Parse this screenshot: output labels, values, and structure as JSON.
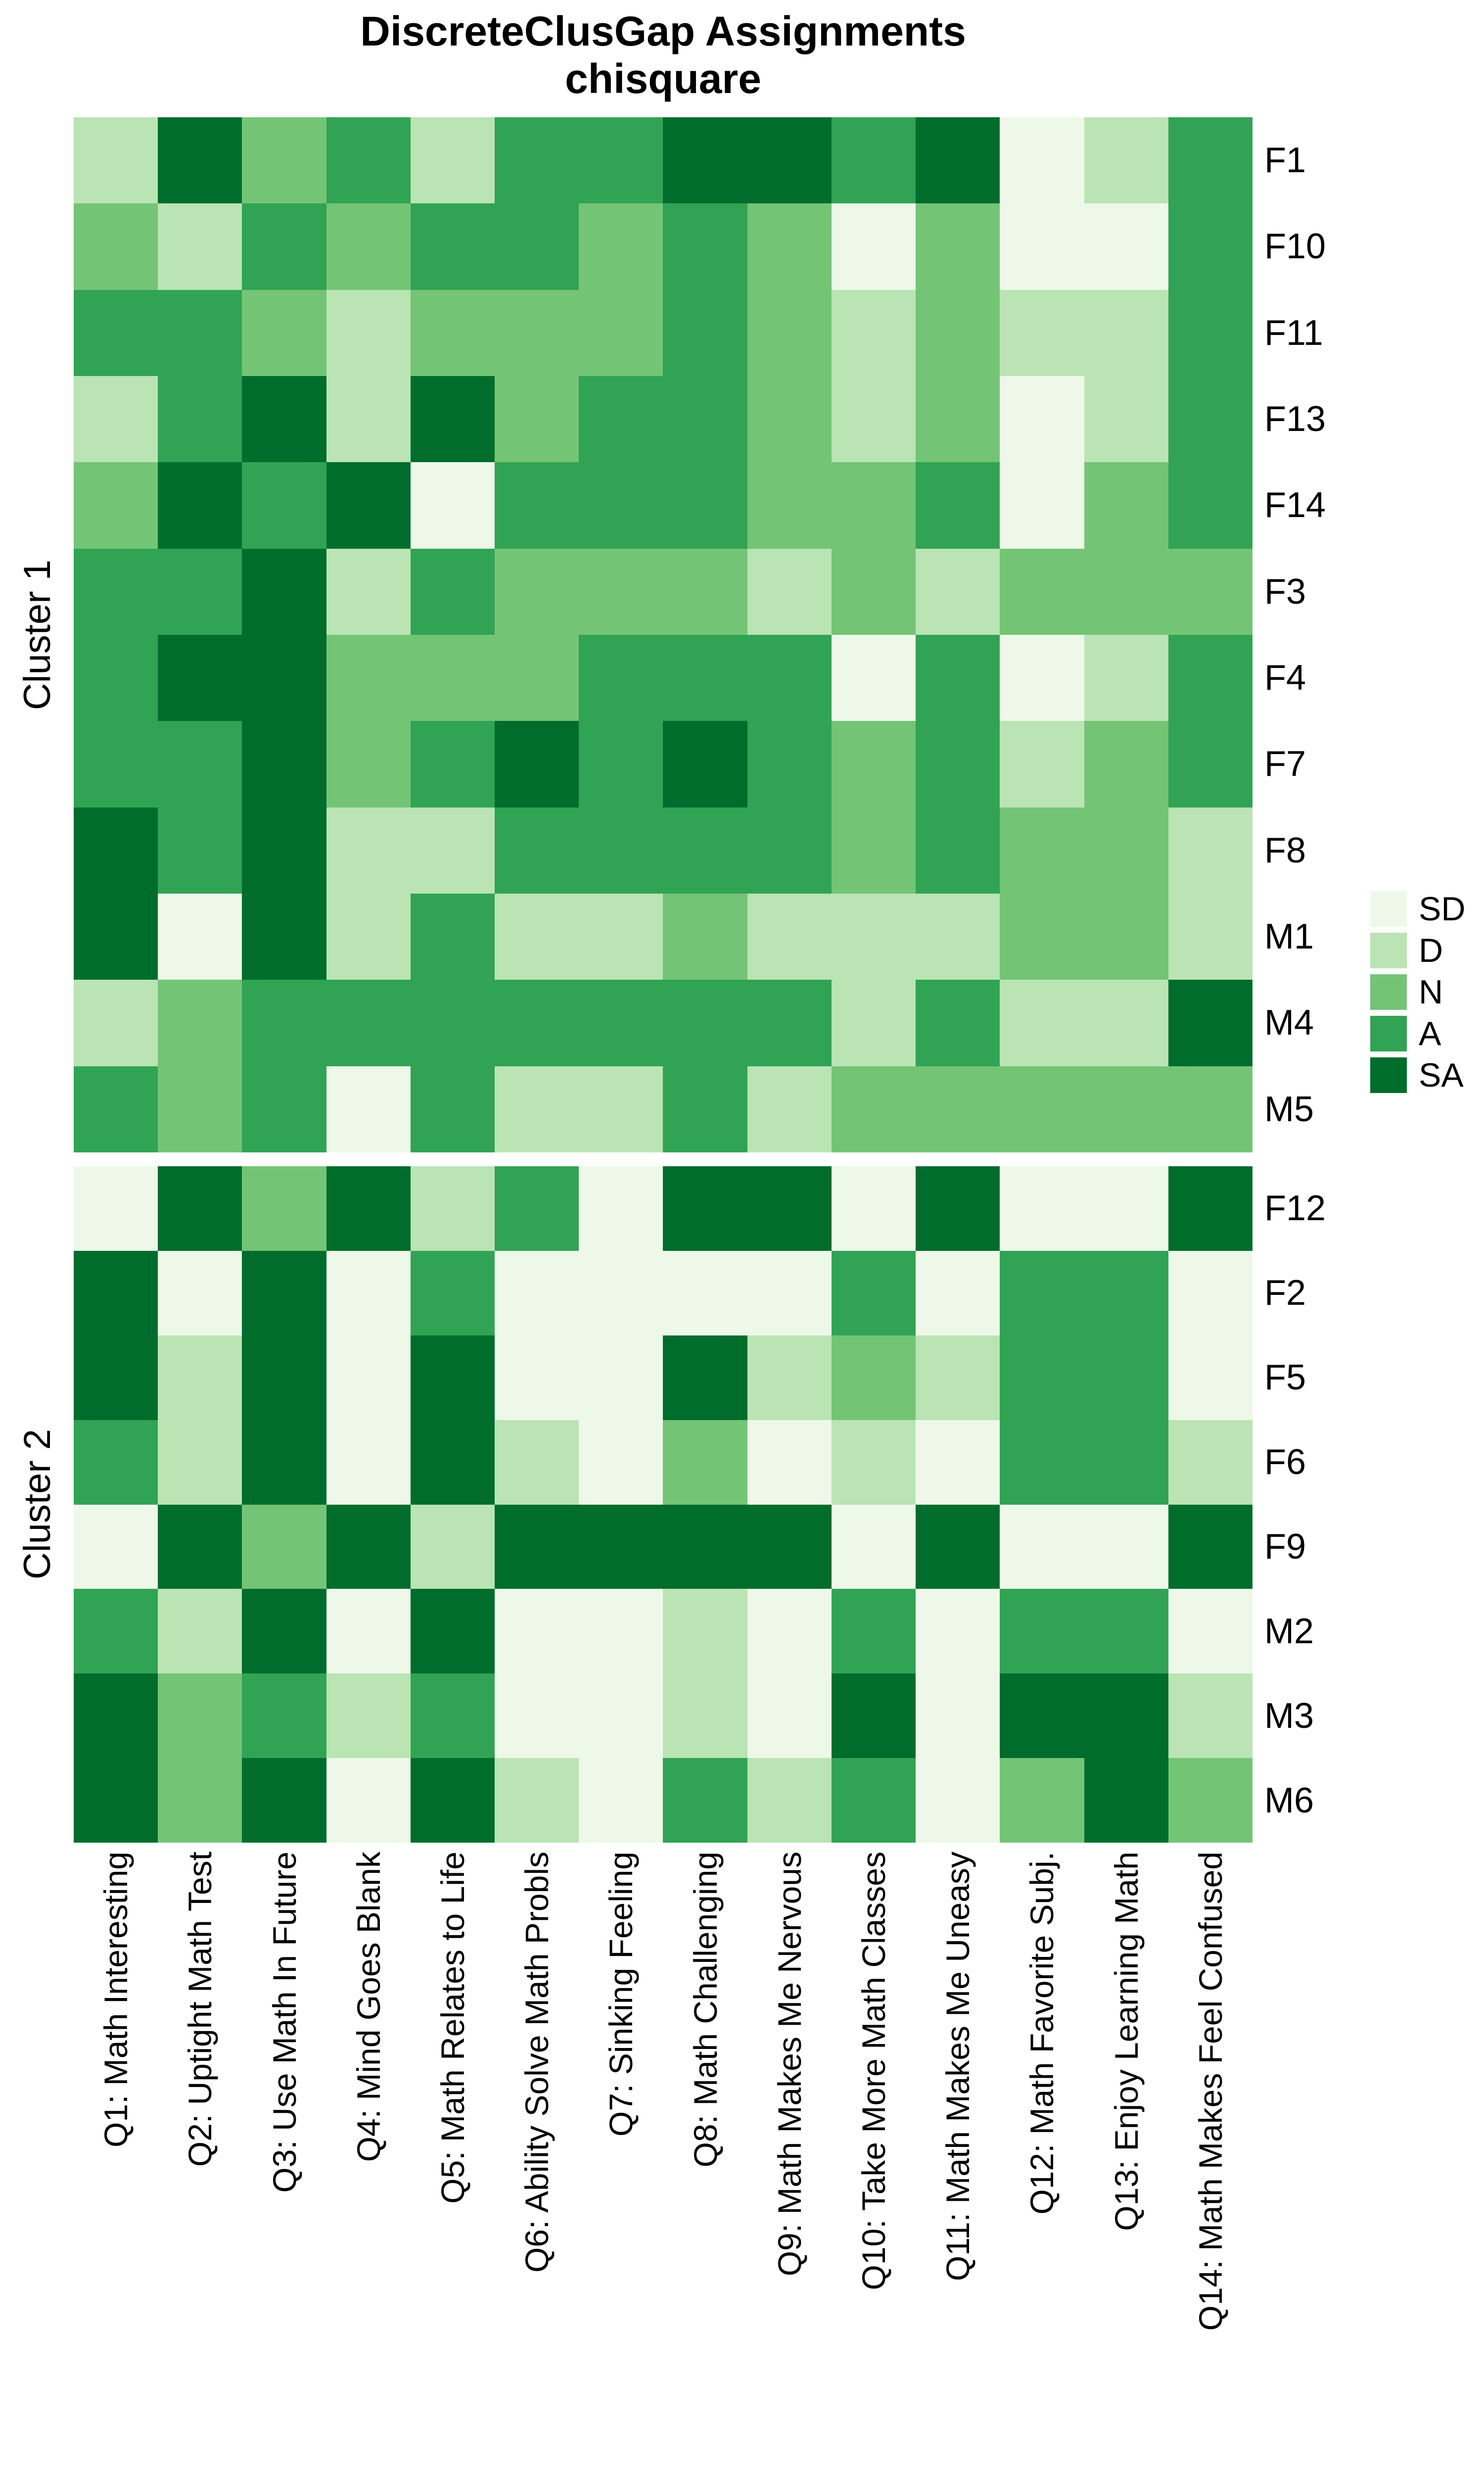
{
  "title": {
    "line1": "DiscreteClusGap Assignments",
    "line2": "chisquare"
  },
  "chart_data": {
    "type": "heatmap",
    "title": "DiscreteClusGap Assignments",
    "subtitle": "chisquare",
    "grid": false,
    "x_labels": [
      "Q1: Math Interesting",
      "Q2: Uptight Math Test",
      "Q3: Use Math In Future",
      "Q4: Mind Goes Blank",
      "Q5: Math Relates to Life",
      "Q6: Ability Solve Math Probls",
      "Q7: Sinking Feeling",
      "Q8: Math Challenging",
      "Q9: Math Makes Me Nervous",
      "Q10: Take More Math Classes",
      "Q11: Math Makes Me Uneasy",
      "Q12: Math Favorite Subj.",
      "Q13: Enjoy Learning Math",
      "Q14: Math Makes Feel Confused"
    ],
    "levels": [
      "SD",
      "D",
      "N",
      "A",
      "SA"
    ],
    "level_colors": {
      "SD": "#EDF8E9",
      "D": "#BAE4B3",
      "N": "#74C476",
      "A": "#31A354",
      "SA": "#006D2C"
    },
    "legend": {
      "position": "right",
      "items": [
        "SD",
        "D",
        "N",
        "A",
        "SA"
      ]
    },
    "panels": [
      {
        "name": "Cluster 1",
        "rows": [
          "F1",
          "F10",
          "F11",
          "F13",
          "F14",
          "F3",
          "F4",
          "F7",
          "F8",
          "M1",
          "M4",
          "M5"
        ],
        "values": [
          [
            "D",
            "SA",
            "N",
            "A",
            "D",
            "A",
            "A",
            "SA",
            "SA",
            "A",
            "SA",
            "SD",
            "D",
            "A"
          ],
          [
            "N",
            "D",
            "A",
            "N",
            "A",
            "A",
            "N",
            "A",
            "N",
            "SD",
            "N",
            "SD",
            "SD",
            "A"
          ],
          [
            "A",
            "A",
            "N",
            "D",
            "N",
            "N",
            "N",
            "A",
            "N",
            "D",
            "N",
            "D",
            "D",
            "A"
          ],
          [
            "D",
            "A",
            "SA",
            "D",
            "SA",
            "N",
            "A",
            "A",
            "N",
            "D",
            "N",
            "SD",
            "D",
            "A"
          ],
          [
            "N",
            "SA",
            "A",
            "SA",
            "SD",
            "A",
            "A",
            "A",
            "N",
            "N",
            "A",
            "SD",
            "N",
            "A"
          ],
          [
            "A",
            "A",
            "SA",
            "D",
            "A",
            "N",
            "N",
            "N",
            "D",
            "N",
            "D",
            "N",
            "N",
            "N"
          ],
          [
            "A",
            "SA",
            "SA",
            "N",
            "N",
            "N",
            "A",
            "A",
            "A",
            "SD",
            "A",
            "SD",
            "D",
            "A"
          ],
          [
            "A",
            "A",
            "SA",
            "N",
            "A",
            "SA",
            "A",
            "SA",
            "A",
            "N",
            "A",
            "D",
            "N",
            "A"
          ],
          [
            "SA",
            "A",
            "SA",
            "D",
            "D",
            "A",
            "A",
            "A",
            "A",
            "N",
            "A",
            "N",
            "N",
            "D"
          ],
          [
            "SA",
            "SD",
            "SA",
            "D",
            "A",
            "D",
            "D",
            "N",
            "D",
            "D",
            "D",
            "N",
            "N",
            "D"
          ],
          [
            "D",
            "N",
            "A",
            "A",
            "A",
            "A",
            "A",
            "A",
            "A",
            "D",
            "A",
            "D",
            "D",
            "SA"
          ],
          [
            "A",
            "N",
            "A",
            "SD",
            "A",
            "D",
            "D",
            "A",
            "D",
            "N",
            "N",
            "N",
            "N",
            "N"
          ]
        ]
      },
      {
        "name": "Cluster 2",
        "rows": [
          "F12",
          "F2",
          "F5",
          "F6",
          "F9",
          "M2",
          "M3",
          "M6"
        ],
        "values": [
          [
            "SD",
            "SA",
            "N",
            "SA",
            "D",
            "A",
            "SD",
            "SA",
            "SA",
            "SD",
            "SA",
            "SD",
            "SD",
            "SA"
          ],
          [
            "SA",
            "SD",
            "SA",
            "SD",
            "A",
            "SD",
            "SD",
            "SD",
            "SD",
            "A",
            "SD",
            "A",
            "A",
            "SD"
          ],
          [
            "SA",
            "D",
            "SA",
            "SD",
            "SA",
            "SD",
            "SD",
            "SA",
            "D",
            "N",
            "D",
            "A",
            "A",
            "SD"
          ],
          [
            "A",
            "D",
            "SA",
            "SD",
            "SA",
            "D",
            "SD",
            "N",
            "SD",
            "D",
            "SD",
            "A",
            "A",
            "D"
          ],
          [
            "SD",
            "SA",
            "N",
            "SA",
            "D",
            "SA",
            "SA",
            "SA",
            "SA",
            "SD",
            "SA",
            "SD",
            "SD",
            "SA"
          ],
          [
            "A",
            "D",
            "SA",
            "SD",
            "SA",
            "SD",
            "SD",
            "D",
            "SD",
            "A",
            "SD",
            "A",
            "A",
            "SD"
          ],
          [
            "SA",
            "N",
            "A",
            "D",
            "A",
            "SD",
            "SD",
            "D",
            "SD",
            "SA",
            "SD",
            "SA",
            "SA",
            "D"
          ],
          [
            "SA",
            "N",
            "SA",
            "SD",
            "SA",
            "D",
            "SD",
            "A",
            "D",
            "A",
            "SD",
            "N",
            "SA",
            "N"
          ]
        ]
      }
    ]
  }
}
